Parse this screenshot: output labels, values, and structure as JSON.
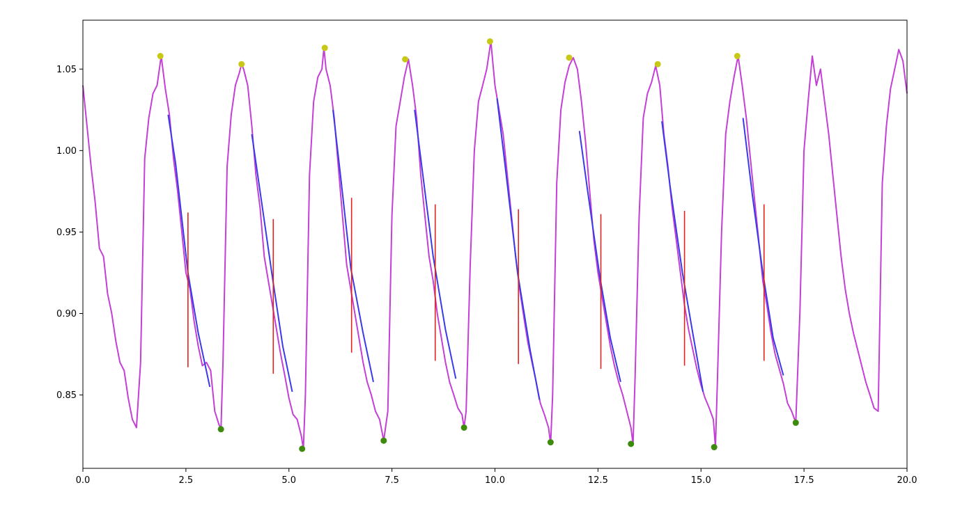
{
  "chart_data": {
    "type": "line",
    "title": "",
    "xlabel": "",
    "ylabel": "",
    "xlim": [
      0,
      20
    ],
    "ylim": [
      0.805,
      1.08
    ],
    "grid": false,
    "legend": "none",
    "x_ticks": [
      {
        "value": 0,
        "label": "0.0"
      },
      {
        "value": 2.5,
        "label": "2.5"
      },
      {
        "value": 5,
        "label": "5.0"
      },
      {
        "value": 7.5,
        "label": "7.5"
      },
      {
        "value": 10,
        "label": "10.0"
      },
      {
        "value": 12.5,
        "label": "12.5"
      },
      {
        "value": 15,
        "label": "15.0"
      },
      {
        "value": 17.5,
        "label": "17.5"
      },
      {
        "value": 20,
        "label": "20.0"
      }
    ],
    "y_ticks": [
      {
        "value": 0.85,
        "label": "0.85"
      },
      {
        "value": 0.9,
        "label": "0.90"
      },
      {
        "value": 0.95,
        "label": "0.95"
      },
      {
        "value": 1.0,
        "label": "1.00"
      },
      {
        "value": 1.05,
        "label": "1.05"
      }
    ],
    "colors": {
      "signal": "#c43fd6",
      "fit": "#3a3ae8",
      "marker": "#e0231e",
      "peak": "#c8c817",
      "trough": "#3e8a0c"
    },
    "signal": {
      "x": [
        0,
        0.1,
        0.2,
        0.3,
        0.4,
        0.5,
        0.6,
        0.7,
        0.8,
        0.9,
        1.0,
        1.1,
        1.2,
        1.3,
        1.4,
        1.5,
        1.6,
        1.7,
        1.8,
        1.9,
        2.0,
        2.1,
        2.2,
        2.3,
        2.4,
        2.5,
        2.6,
        2.7,
        2.8,
        2.9,
        3.0,
        3.1,
        3.2,
        3.3,
        3.35,
        3.4,
        3.5,
        3.6,
        3.7,
        3.8,
        3.85,
        3.9,
        4.0,
        4.1,
        4.2,
        4.3,
        4.4,
        4.5,
        4.6,
        4.7,
        4.8,
        4.9,
        5.0,
        5.1,
        5.2,
        5.3,
        5.35,
        5.4,
        5.5,
        5.6,
        5.7,
        5.8,
        5.85,
        5.9,
        6.0,
        6.1,
        6.2,
        6.3,
        6.4,
        6.5,
        6.6,
        6.7,
        6.8,
        6.9,
        7.0,
        7.1,
        7.2,
        7.3,
        7.4,
        7.5,
        7.6,
        7.7,
        7.8,
        7.9,
        8.0,
        8.1,
        8.2,
        8.3,
        8.4,
        8.5,
        8.6,
        8.7,
        8.8,
        8.9,
        9.0,
        9.1,
        9.2,
        9.25,
        9.3,
        9.4,
        9.5,
        9.6,
        9.7,
        9.8,
        9.9,
        10.0,
        10.1,
        10.2,
        10.3,
        10.4,
        10.5,
        10.6,
        10.7,
        10.8,
        10.9,
        11.0,
        11.1,
        11.2,
        11.3,
        11.35,
        11.4,
        11.5,
        11.6,
        11.7,
        11.8,
        11.9,
        12.0,
        12.1,
        12.2,
        12.3,
        12.4,
        12.5,
        12.6,
        12.7,
        12.8,
        12.9,
        13.0,
        13.1,
        13.2,
        13.3,
        13.35,
        13.4,
        13.5,
        13.6,
        13.7,
        13.8,
        13.9,
        14.0,
        14.1,
        14.2,
        14.3,
        14.4,
        14.5,
        14.6,
        14.7,
        14.8,
        14.9,
        15.0,
        15.1,
        15.2,
        15.3,
        15.35,
        15.4,
        15.5,
        15.6,
        15.7,
        15.8,
        15.9,
        16.0,
        16.1,
        16.2,
        16.3,
        16.4,
        16.5,
        16.6,
        16.7,
        16.8,
        16.9,
        17.0,
        17.1,
        17.2,
        17.3,
        17.4,
        17.5,
        17.6,
        17.7,
        17.8,
        17.9,
        18.0,
        18.1,
        18.2,
        18.3,
        18.4,
        18.5,
        18.6,
        18.7,
        18.8,
        18.9,
        19.0,
        19.1,
        19.2,
        19.3,
        19.4,
        19.5,
        19.6,
        19.7,
        19.8,
        19.9,
        20.0
      ],
      "y": [
        1.04,
        1.015,
        0.99,
        0.968,
        0.94,
        0.935,
        0.912,
        0.9,
        0.883,
        0.87,
        0.865,
        0.848,
        0.835,
        0.83,
        0.87,
        0.995,
        1.02,
        1.035,
        1.04,
        1.058,
        1.038,
        1.022,
        0.995,
        0.975,
        0.95,
        0.925,
        0.915,
        0.895,
        0.88,
        0.868,
        0.87,
        0.865,
        0.84,
        0.832,
        0.829,
        0.87,
        0.99,
        1.022,
        1.04,
        1.048,
        1.053,
        1.05,
        1.04,
        1.015,
        0.985,
        0.965,
        0.935,
        0.92,
        0.905,
        0.89,
        0.875,
        0.862,
        0.848,
        0.838,
        0.835,
        0.825,
        0.817,
        0.85,
        0.985,
        1.03,
        1.045,
        1.05,
        1.063,
        1.05,
        1.04,
        1.02,
        0.99,
        0.96,
        0.93,
        0.915,
        0.9,
        0.885,
        0.87,
        0.858,
        0.85,
        0.84,
        0.835,
        0.822,
        0.84,
        0.96,
        1.015,
        1.03,
        1.045,
        1.056,
        1.04,
        1.02,
        0.985,
        0.96,
        0.935,
        0.92,
        0.9,
        0.885,
        0.87,
        0.858,
        0.85,
        0.842,
        0.838,
        0.83,
        0.84,
        0.93,
        1.0,
        1.03,
        1.04,
        1.05,
        1.067,
        1.04,
        1.025,
        1.01,
        0.985,
        0.96,
        0.935,
        0.915,
        0.898,
        0.882,
        0.87,
        0.858,
        0.845,
        0.838,
        0.83,
        0.82,
        0.85,
        0.98,
        1.025,
        1.042,
        1.052,
        1.057,
        1.05,
        1.03,
        1.005,
        0.975,
        0.945,
        0.925,
        0.91,
        0.895,
        0.88,
        0.868,
        0.858,
        0.85,
        0.84,
        0.83,
        0.82,
        0.86,
        0.96,
        1.02,
        1.035,
        1.042,
        1.052,
        1.04,
        1.01,
        0.99,
        0.965,
        0.945,
        0.925,
        0.905,
        0.89,
        0.878,
        0.866,
        0.856,
        0.848,
        0.842,
        0.835,
        0.818,
        0.86,
        0.95,
        1.01,
        1.03,
        1.045,
        1.058,
        1.04,
        1.02,
        0.995,
        0.97,
        0.945,
        0.92,
        0.905,
        0.888,
        0.875,
        0.866,
        0.857,
        0.845,
        0.84,
        0.833,
        0.9,
        1.0,
        1.03,
        1.058,
        1.04,
        1.05,
        1.03,
        1.01,
        0.985,
        0.96,
        0.935,
        0.915,
        0.9,
        0.888,
        0.878,
        0.868,
        0.858,
        0.85,
        0.842,
        0.84,
        0.98,
        1.015,
        1.038,
        1.05,
        1.062,
        1.055,
        1.035
      ]
    },
    "fit_segments": [
      {
        "x": [
          2.07,
          2.25,
          2.55,
          2.8,
          3.08
        ],
        "y": [
          1.022,
          0.992,
          0.925,
          0.888,
          0.855
        ]
      },
      {
        "x": [
          4.1,
          4.3,
          4.6,
          4.85,
          5.08
        ],
        "y": [
          1.01,
          0.975,
          0.922,
          0.88,
          0.852
        ]
      },
      {
        "x": [
          6.07,
          6.25,
          6.5,
          6.8,
          7.05
        ],
        "y": [
          1.025,
          0.985,
          0.928,
          0.888,
          0.858
        ]
      },
      {
        "x": [
          8.05,
          8.25,
          8.5,
          8.8,
          9.05
        ],
        "y": [
          1.025,
          0.985,
          0.935,
          0.89,
          0.86
        ]
      },
      {
        "x": [
          10.05,
          10.25,
          10.55,
          10.85,
          11.08
        ],
        "y": [
          1.032,
          0.99,
          0.925,
          0.878,
          0.847
        ]
      },
      {
        "x": [
          12.05,
          12.25,
          12.55,
          12.8,
          13.05
        ],
        "y": [
          1.012,
          0.975,
          0.922,
          0.885,
          0.858
        ]
      },
      {
        "x": [
          14.05,
          14.25,
          14.55,
          14.8,
          15.05
        ],
        "y": [
          1.018,
          0.978,
          0.925,
          0.888,
          0.852
        ]
      },
      {
        "x": [
          16.02,
          16.25,
          16.5,
          16.75,
          17.0
        ],
        "y": [
          1.02,
          0.972,
          0.925,
          0.885,
          0.862
        ]
      }
    ],
    "vertical_markers": [
      {
        "x": 2.55,
        "y0": 0.867,
        "y1": 0.962
      },
      {
        "x": 4.62,
        "y0": 0.863,
        "y1": 0.958
      },
      {
        "x": 6.52,
        "y0": 0.876,
        "y1": 0.971
      },
      {
        "x": 8.55,
        "y0": 0.871,
        "y1": 0.967
      },
      {
        "x": 10.57,
        "y0": 0.869,
        "y1": 0.964
      },
      {
        "x": 12.57,
        "y0": 0.866,
        "y1": 0.961
      },
      {
        "x": 14.6,
        "y0": 0.868,
        "y1": 0.963
      },
      {
        "x": 16.53,
        "y0": 0.871,
        "y1": 0.967
      }
    ],
    "peaks": [
      {
        "x": 1.88,
        "y": 1.058
      },
      {
        "x": 3.85,
        "y": 1.053
      },
      {
        "x": 5.87,
        "y": 1.063
      },
      {
        "x": 7.82,
        "y": 1.056
      },
      {
        "x": 9.88,
        "y": 1.067
      },
      {
        "x": 11.8,
        "y": 1.057
      },
      {
        "x": 13.95,
        "y": 1.053
      },
      {
        "x": 15.88,
        "y": 1.058
      }
    ],
    "troughs": [
      {
        "x": 3.35,
        "y": 0.829
      },
      {
        "x": 5.32,
        "y": 0.817
      },
      {
        "x": 7.3,
        "y": 0.822
      },
      {
        "x": 9.25,
        "y": 0.83
      },
      {
        "x": 11.35,
        "y": 0.821
      },
      {
        "x": 13.3,
        "y": 0.82
      },
      {
        "x": 15.32,
        "y": 0.818
      },
      {
        "x": 17.3,
        "y": 0.833
      }
    ]
  }
}
